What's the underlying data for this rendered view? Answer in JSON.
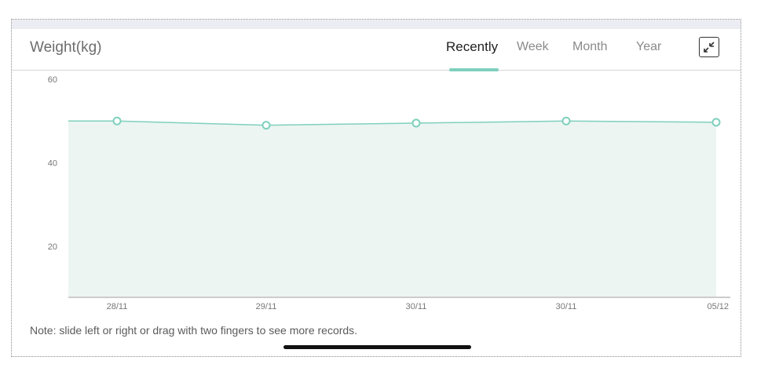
{
  "header": {
    "title": "Weight(kg)",
    "tabs": [
      {
        "label": "Recently",
        "active": true
      },
      {
        "label": "Week",
        "active": false
      },
      {
        "label": "Month",
        "active": false
      },
      {
        "label": "Year",
        "active": false
      }
    ],
    "expand_icon": "collapse-arrows-icon"
  },
  "note": "Note: slide left or right or drag with two fingers to see more records.",
  "colors": {
    "accent": "#7fd0bd",
    "area_fill": "#ecf5f2",
    "line": "#7fd0bd"
  },
  "chart_data": {
    "type": "area",
    "title": "Weight(kg)",
    "categories": [
      "28/11",
      "29/11",
      "30/11",
      "30/11",
      "05/12"
    ],
    "series": [
      {
        "values": [
          50,
          49,
          49.5,
          50,
          49.7
        ]
      }
    ],
    "ylim": [
      8,
      60
    ],
    "yticks": [
      20,
      40,
      60
    ],
    "grid": false,
    "legend": "none"
  }
}
